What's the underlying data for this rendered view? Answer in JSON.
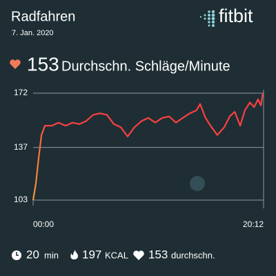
{
  "header": {
    "title": "Radfahren",
    "date": "7. Jan. 2020",
    "brand": "fitbit"
  },
  "summary": {
    "value": "153",
    "label": "Durchschn. Schläge/Minute"
  },
  "chart_data": {
    "type": "line",
    "x": [
      0,
      15,
      29,
      44,
      62,
      98,
      134,
      171,
      207,
      243,
      279,
      316,
      352,
      388,
      425,
      461,
      497,
      533,
      570,
      606,
      642,
      679,
      715,
      751,
      787,
      824,
      860,
      878,
      907,
      933,
      969,
      1005,
      1034,
      1060,
      1089,
      1114,
      1140,
      1162,
      1183,
      1198,
      1208
    ],
    "series": [
      {
        "color": "#ff4040",
        "start_color": "#f59a3a",
        "values": [
          103,
          114,
          130,
          145,
          151,
          151,
          153,
          151,
          153,
          152,
          154,
          158,
          159,
          158,
          152,
          150,
          144,
          150,
          154,
          156,
          153,
          156,
          157,
          153,
          156,
          159,
          161,
          165,
          156,
          151,
          145,
          150,
          157,
          160,
          151,
          161,
          166,
          163,
          168,
          164,
          172
        ]
      }
    ],
    "xlim": [
      0,
      1212
    ],
    "xticks": [
      {
        "value": 0,
        "label": "00:00"
      },
      {
        "value": 1212,
        "label": "20:12"
      }
    ],
    "ylim": [
      103,
      172
    ],
    "yticks": [
      103,
      137,
      172
    ],
    "grid": true
  },
  "footer": [
    {
      "value": "20",
      "unit": "min"
    },
    {
      "value": "197",
      "unit": "KCAL"
    },
    {
      "value": "153",
      "unit": "durchschn."
    }
  ]
}
